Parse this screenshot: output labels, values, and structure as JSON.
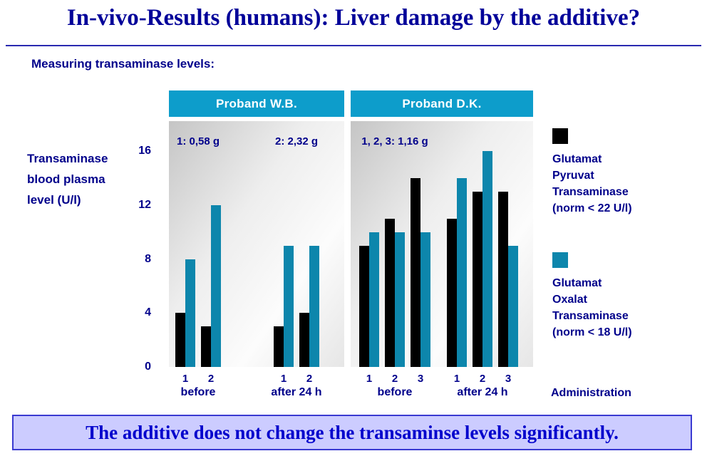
{
  "title": "In-vivo-Results (humans): Liver damage by the additive?",
  "subtitle": "Measuring transaminase levels:",
  "y_axis_title": "Transaminase\nblood plasma\nlevel (U/l)",
  "conclusion": "The additive does not change the transaminse levels significantly.",
  "colors": {
    "title_blue": "#000099",
    "label_navy": "#00008b",
    "header_cyan": "#0d9dcb",
    "bar_black": "#000000",
    "bar_teal": "#0d86ac",
    "conclusion_bg": "#ccccff",
    "conclusion_border": "#3a3ad1",
    "conclusion_text": "#0000cc"
  },
  "legend": [
    {
      "series": "Glutamat Pyruvat Transaminase",
      "text": "Glutamat\nPyruvat\nTransaminase\n(norm < 22 U/l)"
    },
    {
      "series": "Glutamat Oxalat Transaminase",
      "text": "Glutamat\nOxalat\nTransaminase\n(norm < 18 U/l)"
    }
  ],
  "chart_data": {
    "type": "bar",
    "ylabel": "Transaminase blood plasma level (U/l)",
    "xlabel": "Administration",
    "ylim": [
      0,
      16
    ],
    "yticks": [
      0,
      4,
      8,
      12,
      16
    ],
    "grid": false,
    "legend_position": "right",
    "series": [
      "Glutamat Pyruvat Transaminase (norm < 22 U/l)",
      "Glutamat Oxalat Transaminase (norm < 18 U/l)"
    ],
    "series_colors": [
      "#000000",
      "#0d86ac"
    ],
    "panels": [
      {
        "title": "Proband W.B.",
        "groups": [
          {
            "label": "before",
            "dose_label": "1: 0,58 g",
            "bars": [
              {
                "x": "1",
                "values": [
                  4,
                  8
                ]
              },
              {
                "x": "2",
                "values": [
                  3,
                  12
                ]
              }
            ]
          },
          {
            "label": "after 24 h",
            "dose_label": "2: 2,32 g",
            "bars": [
              {
                "x": "1",
                "values": [
                  3,
                  9
                ]
              },
              {
                "x": "2",
                "values": [
                  4,
                  9
                ]
              }
            ]
          }
        ]
      },
      {
        "title": "Proband D.K.",
        "groups": [
          {
            "label": "before",
            "dose_label": "1, 2, 3: 1,16 g",
            "bars": [
              {
                "x": "1",
                "values": [
                  9,
                  10
                ]
              },
              {
                "x": "2",
                "values": [
                  11,
                  10
                ]
              },
              {
                "x": "3",
                "values": [
                  14,
                  10
                ]
              }
            ]
          },
          {
            "label": "after 24 h",
            "dose_label": "",
            "bars": [
              {
                "x": "1",
                "values": [
                  11,
                  14
                ]
              },
              {
                "x": "2",
                "values": [
                  13,
                  16
                ]
              },
              {
                "x": "3",
                "values": [
                  13,
                  9
                ]
              }
            ]
          }
        ]
      }
    ]
  }
}
